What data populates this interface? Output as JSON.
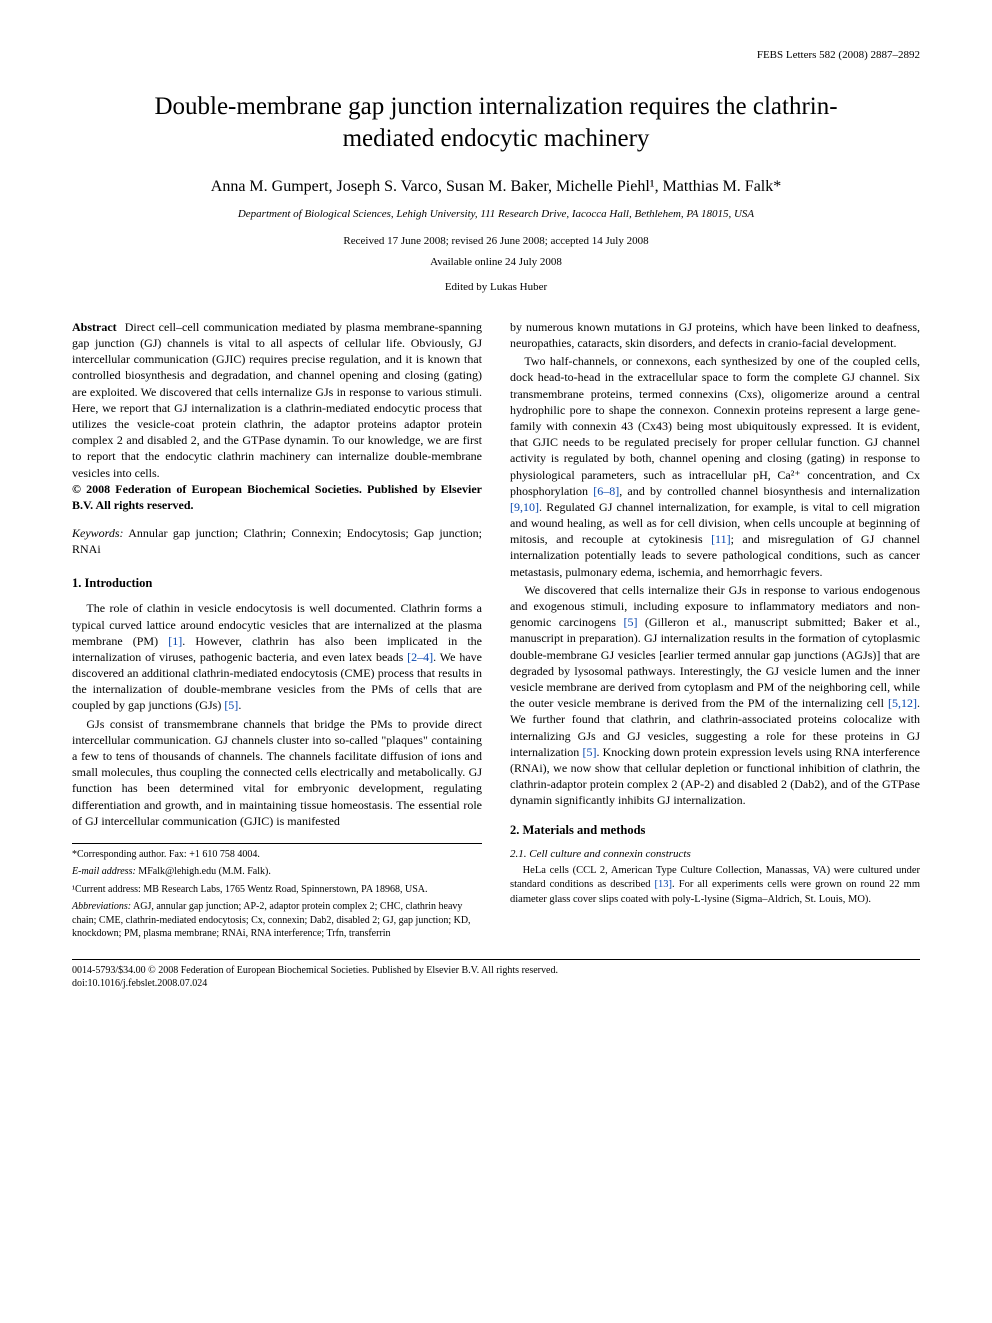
{
  "journal_header": "FEBS Letters 582 (2008) 2887–2892",
  "title": "Double-membrane gap junction internalization requires the clathrin-mediated endocytic machinery",
  "authors_html": "Anna M. Gumpert, Joseph S. Varco, Susan M. Baker, Michelle Piehl¹, Matthias M. Falk*",
  "affiliation": "Department of Biological Sciences, Lehigh University, 111 Research Drive, Iacocca Hall, Bethlehem, PA 18015, USA",
  "dates": "Received 17 June 2008; revised 26 June 2008; accepted 14 July 2008",
  "available": "Available online 24 July 2008",
  "editor": "Edited by Lukas Huber",
  "abstract": {
    "label": "Abstract",
    "text": "Direct cell–cell communication mediated by plasma membrane-spanning gap junction (GJ) channels is vital to all aspects of cellular life. Obviously, GJ intercellular communication (GJIC) requires precise regulation, and it is known that controlled biosynthesis and degradation, and channel opening and closing (gating) are exploited. We discovered that cells internalize GJs in response to various stimuli. Here, we report that GJ internalization is a clathrin-mediated endocytic process that utilizes the vesicle-coat protein clathrin, the adaptor proteins adaptor protein complex 2 and disabled 2, and the GTPase dynamin. To our knowledge, we are first to report that the endocytic clathrin machinery can internalize double-membrane vesicles into cells.",
    "copyright": "© 2008 Federation of European Biochemical Societies. Published by Elsevier B.V. All rights reserved."
  },
  "keywords": {
    "label": "Keywords:",
    "text": "Annular gap junction; Clathrin; Connexin; Endocytosis; Gap junction; RNAi"
  },
  "sections": {
    "intro_head": "1. Introduction",
    "intro_p1a": "The role of clathin in vesicle endocytosis is well documented. Clathrin forms a typical curved lattice around endocytic vesicles that are internalized at the plasma membrane (PM) ",
    "ref1": "[1]",
    "intro_p1b": ". However, clathrin has also been implicated in the internalization of viruses, pathogenic bacteria, and even latex beads ",
    "ref2_4": "[2–4]",
    "intro_p1c": ". We have discovered an additional clathrin-mediated endocytosis (CME) process that results in the internalization of double-membrane vesicles from the PMs of cells that are coupled by gap junctions (GJs) ",
    "ref5": "[5]",
    "intro_p1d": ".",
    "intro_p2": "GJs consist of transmembrane channels that bridge the PMs to provide direct intercellular communication. GJ channels cluster into so-called \"plaques\" containing a few to tens of thousands of channels. The channels facilitate diffusion of ions and small molecules, thus coupling the connected cells electrically and metabolically. GJ function has been determined vital for embryonic development, regulating differentiation and growth, and in maintaining tissue homeostasis. The essential role of GJ intercellular communication (GJIC) is manifested",
    "intro_p2b": "by numerous known mutations in GJ proteins, which have been linked to deafness, neuropathies, cataracts, skin disorders, and defects in cranio-facial development.",
    "intro_p3a": "Two half-channels, or connexons, each synthesized by one of the coupled cells, dock head-to-head in the extracellular space to form the complete GJ channel. Six transmembrane proteins, termed connexins (Cxs), oligomerize around a central hydrophilic pore to shape the connexon. Connexin proteins represent a large gene-family with connexin 43 (Cx43) being most ubiquitously expressed. It is evident, that GJIC needs to be regulated precisely for proper cellular function. GJ channel activity is regulated by both, channel opening and closing (gating) in response to physiological parameters, such as intracellular pH, Ca²⁺ concentration, and Cx phosphorylation ",
    "ref6_8": "[6–8]",
    "intro_p3b": ", and by controlled channel biosynthesis and internalization ",
    "ref9_10": "[9,10]",
    "intro_p3c": ". Regulated GJ channel internalization, for example, is vital to cell migration and wound healing, as well as for cell division, when cells uncouple at beginning of mitosis, and recouple at cytokinesis ",
    "ref11": "[11]",
    "intro_p3d": "; and misregulation of GJ channel internalization potentially leads to severe pathological conditions, such as cancer metastasis, pulmonary edema, ischemia, and hemorrhagic fevers.",
    "intro_p4a": "We discovered that cells internalize their GJs in response to various endogenous and exogenous stimuli, including exposure to inflammatory mediators and non-genomic carcinogens ",
    "intro_p4b": " (Gilleron et al., manuscript submitted; Baker et al., manuscript in preparation). GJ internalization results in the formation of cytoplasmic double-membrane GJ vesicles [earlier termed annular gap junctions (AGJs)] that are degraded by lysosomal pathways. Interestingly, the GJ vesicle lumen and the inner vesicle membrane are derived from cytoplasm and PM of the neighboring cell, while the outer vesicle membrane is derived from the PM of the internalizing cell ",
    "ref5_12": "[5,12]",
    "intro_p4c": ". We further found that clathrin, and clathrin-associated proteins colocalize with internalizing GJs and GJ vesicles, suggesting a role for these proteins in GJ internalization ",
    "intro_p4d": ". Knocking down protein expression levels using RNA interference (RNAi), we now show that cellular depletion or functional inhibition of clathrin, the clathrin-adaptor protein complex 2 (AP-2) and disabled 2 (Dab2), and of the GTPase dynamin significantly inhibits GJ internalization.",
    "mm_head": "2. Materials and methods",
    "mm_sub": "2.1. Cell culture and connexin constructs",
    "mm_p1a": "HeLa cells (CCL 2, American Type Culture Collection, Manassas, VA) were cultured under standard conditions as described ",
    "ref13": "[13]",
    "mm_p1b": ". For all experiments cells were grown on round 22 mm diameter glass cover slips coated with poly-L-lysine (Sigma–Aldrich, St. Louis, MO)."
  },
  "footnotes": {
    "corr_label": "*Corresponding author. Fax: +1 610 758 4004.",
    "email_label": "E-mail address:",
    "email": "MFalk@lehigh.edu (M.M. Falk).",
    "addr1": "¹Current address: MB Research Labs, 1765 Wentz Road, Spinnerstown, PA 18968, USA.",
    "abbrev_label": "Abbreviations:",
    "abbrev": "AGJ, annular gap junction; AP-2, adaptor protein complex 2; CHC, clathrin heavy chain; CME, clathrin-mediated endocytosis; Cx, connexin; Dab2, disabled 2; GJ, gap junction; KD, knockdown; PM, plasma membrane; RNAi, RNA interference; Trfn, transferrin"
  },
  "bottom": {
    "line1": "0014-5793/$34.00 © 2008 Federation of European Biochemical Societies. Published by Elsevier B.V. All rights reserved.",
    "doi": "doi:10.1016/j.febslet.2008.07.024"
  },
  "colors": {
    "link": "#0645ad",
    "text": "#000000",
    "bg": "#ffffff"
  }
}
